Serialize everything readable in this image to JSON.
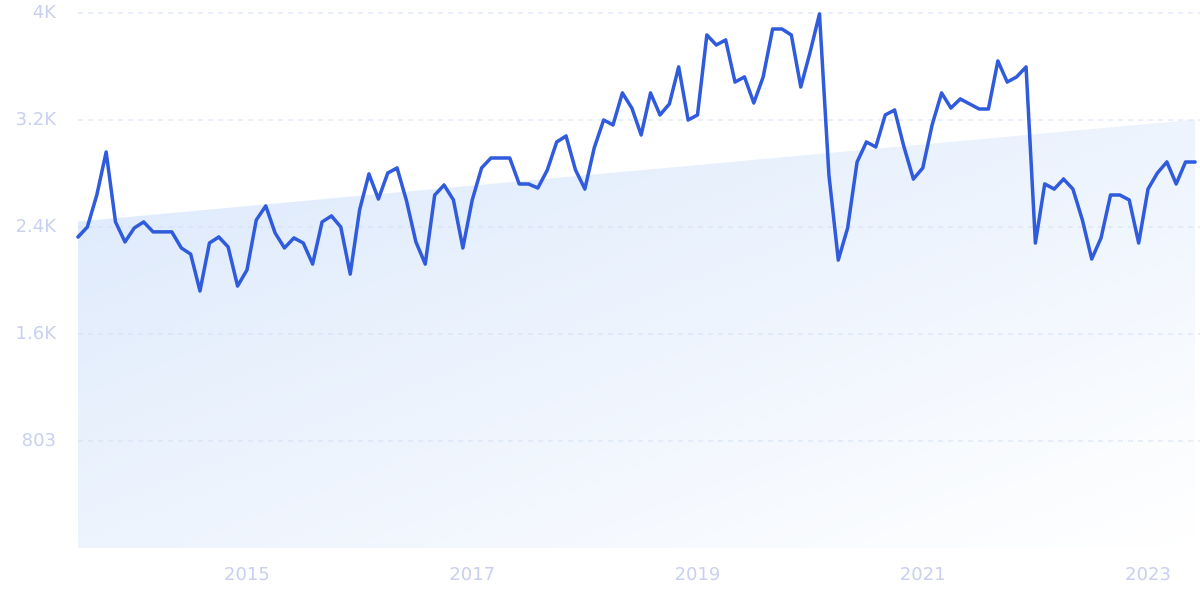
{
  "chart_data": {
    "type": "line",
    "x": [
      2013.5,
      2013.583,
      2013.667,
      2013.75,
      2013.833,
      2013.917,
      2014,
      2014.083,
      2014.167,
      2014.25,
      2014.333,
      2014.417,
      2014.5,
      2014.583,
      2014.667,
      2014.75,
      2014.833,
      2014.917,
      2015,
      2015.083,
      2015.167,
      2015.25,
      2015.333,
      2015.417,
      2015.5,
      2015.583,
      2015.667,
      2015.75,
      2015.833,
      2015.917,
      2016,
      2016.083,
      2016.167,
      2016.25,
      2016.333,
      2016.417,
      2016.5,
      2016.583,
      2016.667,
      2016.75,
      2016.833,
      2016.917,
      2017,
      2017.083,
      2017.167,
      2017.25,
      2017.333,
      2017.417,
      2017.5,
      2017.583,
      2017.667,
      2017.75,
      2017.833,
      2017.917,
      2018,
      2018.083,
      2018.167,
      2018.25,
      2018.333,
      2018.417,
      2018.5,
      2018.583,
      2018.667,
      2018.75,
      2018.833,
      2018.917,
      2019,
      2019.083,
      2019.167,
      2019.25,
      2019.333,
      2019.417,
      2019.5,
      2019.583,
      2019.667,
      2019.75,
      2019.833,
      2019.917,
      2020,
      2020.083,
      2020.167,
      2020.25,
      2020.333,
      2020.417,
      2020.5,
      2020.583,
      2020.667,
      2020.75,
      2020.833,
      2020.917,
      2021,
      2021.083,
      2021.167,
      2021.25,
      2021.333,
      2021.417,
      2021.5,
      2021.583,
      2021.667,
      2021.75,
      2021.833,
      2021.917,
      2022,
      2022.083,
      2022.167,
      2022.25,
      2022.333,
      2022.417,
      2022.5,
      2022.583,
      2022.667,
      2022.75,
      2022.833,
      2022.917,
      2023,
      2023.083,
      2023.167,
      2023.25,
      2023.333,
      2023.417
    ],
    "series": [
      {
        "color": "#2f5bdc",
        "values": [
          2334,
          2409,
          2649,
          2972,
          2447,
          2297,
          2402,
          2447,
          2372,
          2372,
          2372,
          2252,
          2206,
          1929,
          2289,
          2334,
          2259,
          1966,
          2086,
          2462,
          2567,
          2364,
          2252,
          2327,
          2289,
          2131,
          2447,
          2492,
          2409,
          2056,
          2537,
          2807,
          2619,
          2814,
          2852,
          2604,
          2297,
          2131,
          2649,
          2724,
          2612,
          2252,
          2612,
          2852,
          2927,
          2927,
          2927,
          2732,
          2732,
          2702,
          2837,
          3047,
          3092,
          2837,
          2694,
          3002,
          3212,
          3175,
          3415,
          3302,
          3100,
          3415,
          3250,
          3332,
          3610,
          3212,
          3250,
          3850,
          3775,
          3813,
          3497,
          3535,
          3340,
          3535,
          3895,
          3895,
          3850,
          3460,
          3722,
          4008,
          2799,
          2161,
          2402,
          2897,
          3047,
          3010,
          3250,
          3287,
          3010,
          2769,
          2852,
          3175,
          3415,
          3302,
          3370,
          3332,
          3295,
          3295,
          3655,
          3497,
          3535,
          3610,
          2289,
          2732,
          2694,
          2769,
          2694,
          2462,
          2169,
          2327,
          2649,
          2649,
          2612,
          2289,
          2694,
          2814,
          2897,
          2732,
          2897,
          2897
        ]
      }
    ],
    "trend_x": [
      2013.5,
      2023.417
    ],
    "trend_values": [
      2450,
      3215
    ],
    "trend_color": "#dbe8fb",
    "xlim": [
      2013.5,
      2023.417
    ],
    "xticks": [
      2015,
      2017,
      2019,
      2021,
      2023
    ],
    "ylim": [
      0,
      4015
    ],
    "yticks": [
      803,
      {
        "value": 1606,
        "label": "1.6K"
      },
      {
        "value": 2409,
        "label": "2.4K"
      },
      {
        "value": 3212,
        "label": "3.2K"
      },
      {
        "value": 4015,
        "label": "4K"
      }
    ],
    "grid": true
  }
}
